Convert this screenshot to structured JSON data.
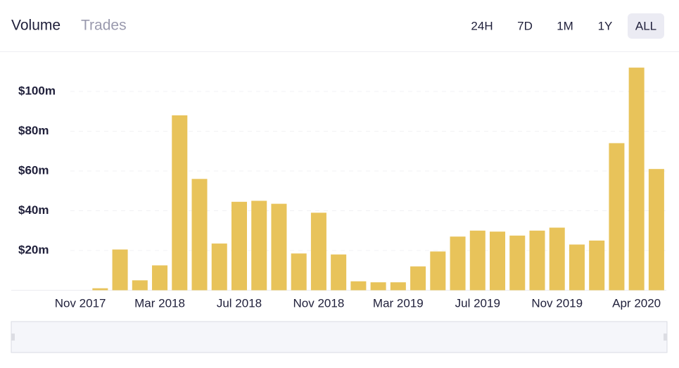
{
  "tabs": [
    "Volume",
    "Trades"
  ],
  "active_tab": 0,
  "ranges": [
    "24H",
    "7D",
    "1M",
    "1Y",
    "ALL"
  ],
  "active_range": 4,
  "chart_data": {
    "type": "bar",
    "categories": [
      "Nov 2017",
      null,
      null,
      null,
      "Mar 2018",
      null,
      null,
      null,
      "Jul 2018",
      null,
      null,
      null,
      "Nov 2018",
      null,
      null,
      null,
      "Mar 2019",
      null,
      null,
      null,
      "Jul 2019",
      null,
      null,
      null,
      "Nov 2019",
      null,
      null,
      null,
      "Apr 2020",
      null
    ],
    "values": [
      0,
      1,
      20.5,
      5,
      12.5,
      88,
      56,
      23.5,
      44.5,
      45,
      43.5,
      18.5,
      39,
      18,
      4.5,
      4,
      4,
      12,
      19.5,
      27,
      30,
      29.5,
      27.5,
      30,
      31.5,
      23,
      25,
      74,
      112,
      61
    ],
    "color": "#e8c35a",
    "ylim": [
      0,
      116
    ],
    "yticks": [
      {
        "value": 20,
        "label": "$20m"
      },
      {
        "value": 40,
        "label": "$40m"
      },
      {
        "value": 60,
        "label": "$60m"
      },
      {
        "value": 80,
        "label": "$80m"
      },
      {
        "value": 100,
        "label": "$100m"
      }
    ],
    "grid": true
  }
}
